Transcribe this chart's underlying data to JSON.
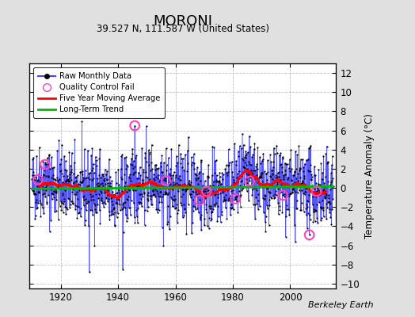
{
  "title": "MORONI",
  "subtitle": "39.527 N, 111.587 W (United States)",
  "ylabel": "Temperature Anomaly (°C)",
  "credit": "Berkeley Earth",
  "ylim": [
    -10.5,
    13.0
  ],
  "xlim": [
    1909,
    2016
  ],
  "yticks": [
    -10,
    -8,
    -6,
    -4,
    -2,
    0,
    2,
    4,
    6,
    8,
    10,
    12
  ],
  "xticks": [
    1920,
    1940,
    1960,
    1980,
    2000
  ],
  "bg_color": "#e0e0e0",
  "plot_bg_color": "#ffffff",
  "raw_line_color": "#4444ff",
  "raw_dot_color": "#000000",
  "moving_avg_color": "#ff0000",
  "trend_color": "#00bb00",
  "qc_fail_color": "#ff44bb",
  "seed": 42,
  "n_years": 105,
  "start_year": 1910
}
